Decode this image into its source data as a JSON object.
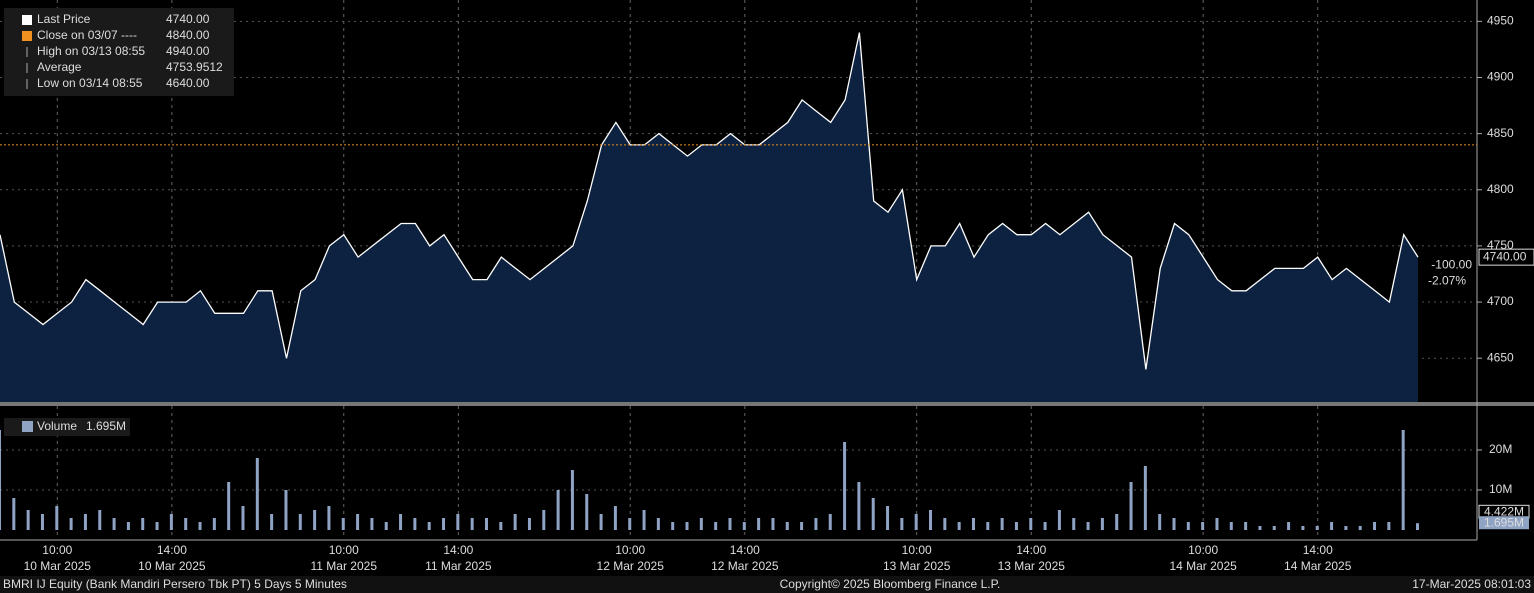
{
  "chart_data": {
    "type": "line",
    "title": "BMRI IJ Equity (Bank Mandiri Persero Tbk PT) 5 Days 5 Minutes",
    "copyright": "Copyright© 2025 Bloomberg Finance L.P.",
    "timestamp": "17-Mar-2025 08:01:03",
    "color": "#ffffff",
    "area_color": "#0d2240",
    "values": [
      4760,
      4700,
      4690,
      4680,
      4690,
      4700,
      4720,
      4710,
      4700,
      4690,
      4680,
      4700,
      4700,
      4700,
      4710,
      4690,
      4690,
      4690,
      4710,
      4710,
      4650,
      4710,
      4720,
      4750,
      4760,
      4740,
      4750,
      4760,
      4770,
      4770,
      4750,
      4760,
      4740,
      4720,
      4720,
      4740,
      4730,
      4720,
      4730,
      4740,
      4750,
      4790,
      4840,
      4860,
      4840,
      4840,
      4850,
      4840,
      4830,
      4840,
      4840,
      4850,
      4840,
      4840,
      4850,
      4860,
      4880,
      4870,
      4860,
      4880,
      4940,
      4790,
      4780,
      4800,
      4720,
      4750,
      4750,
      4770,
      4740,
      4760,
      4770,
      4760,
      4760,
      4770,
      4760,
      4770,
      4780,
      4760,
      4750,
      4740,
      4640,
      4730,
      4770,
      4760,
      4740,
      4720,
      4710,
      4710,
      4720,
      4730,
      4730,
      4730,
      4740,
      4720,
      4730,
      4720,
      4710,
      4700,
      4760,
      4740
    ],
    "ylim": [
      4611,
      4969
    ],
    "yticks": [
      4650,
      4700,
      4750,
      4800,
      4850,
      4900,
      4950
    ],
    "xlim": [
      0,
      99
    ],
    "xticks": [
      {
        "value": 4,
        "label": "10:00",
        "date": "10 Mar 2025"
      },
      {
        "value": 12,
        "label": "14:00",
        "date": "10 Mar 2025"
      },
      {
        "value": 24,
        "label": "10:00",
        "date": "11 Mar 2025"
      },
      {
        "value": 32,
        "label": "14:00",
        "date": "11 Mar 2025"
      },
      {
        "value": 44,
        "label": "10:00",
        "date": "12 Mar 2025"
      },
      {
        "value": 52,
        "label": "14:00",
        "date": "12 Mar 2025"
      },
      {
        "value": 64,
        "label": "10:00",
        "date": "13 Mar 2025"
      },
      {
        "value": 72,
        "label": "14:00",
        "date": "13 Mar 2025"
      },
      {
        "value": 84,
        "label": "10:00",
        "date": "14 Mar 2025"
      },
      {
        "value": 92,
        "label": "14:00",
        "date": "14 Mar 2025"
      }
    ],
    "legend": [
      {
        "name": "Last Price",
        "value": 4740,
        "label": "4740.00",
        "color": "#ffffff"
      },
      {
        "name": "Close on 03/07 ----",
        "value": 4840,
        "label": "4840.00",
        "color": "#f0901e"
      },
      {
        "name": "High on 03/13 08:55",
        "value": 4940,
        "label": "4940.00"
      },
      {
        "name": "Average",
        "value": 4753.9512,
        "label": "4753.9512"
      },
      {
        "name": "Low on 03/14 08:55",
        "value": 4640,
        "label": "4640.00"
      }
    ],
    "change": {
      "value": -100,
      "label": "-100.00"
    },
    "change_pct": {
      "value": -2.07,
      "label": "-2.07%"
    },
    "volume": {
      "name": "Volume",
      "color": "#8fa3c4",
      "last": {
        "value": 1.695,
        "label": "1.695M"
      },
      "average": {
        "value": 4.422,
        "label": "4.422M"
      },
      "values": [
        25,
        8,
        5,
        4,
        6,
        3,
        4,
        5,
        3,
        2,
        3,
        2,
        4,
        3,
        2,
        3,
        12,
        6,
        18,
        4,
        10,
        4,
        5,
        6,
        3,
        4,
        3,
        2,
        4,
        3,
        2,
        3,
        4,
        3,
        3,
        2,
        4,
        3,
        5,
        10,
        15,
        9,
        4,
        6,
        3,
        5,
        3,
        2,
        2,
        3,
        2,
        3,
        2,
        3,
        3,
        2,
        2,
        3,
        4,
        22,
        12,
        8,
        6,
        3,
        4,
        5,
        3,
        2,
        3,
        2,
        3,
        2,
        3,
        2,
        5,
        3,
        2,
        3,
        4,
        12,
        16,
        4,
        3,
        2,
        2,
        3,
        2,
        2,
        1,
        1,
        2,
        1,
        1,
        2,
        1,
        1,
        2,
        2,
        25,
        1.695
      ],
      "ylim": [
        0,
        30.5
      ],
      "yticks": [
        {
          "value": 10,
          "label": "10M"
        },
        {
          "value": 20,
          "label": "20M"
        }
      ]
    }
  }
}
